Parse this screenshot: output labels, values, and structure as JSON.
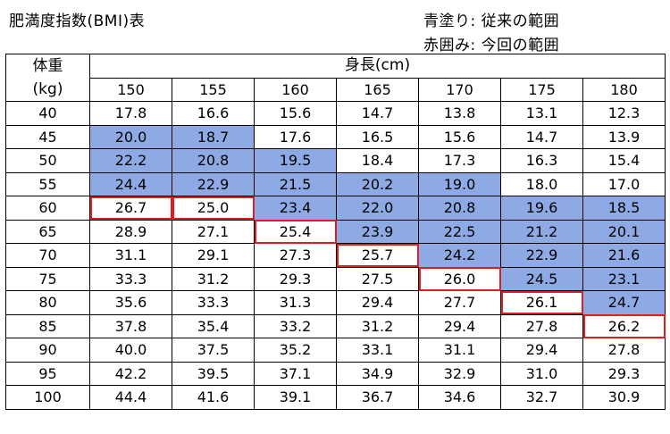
{
  "title": "肥満度指数(BMI)表",
  "legend": {
    "blue": "青塗り: 従来の範囲",
    "red": "赤囲み: 今回の範囲"
  },
  "colors": {
    "blue_fill": "#8eaae4",
    "red_outline": "#e11d1d"
  },
  "header": {
    "weight_label_line1": "体重",
    "weight_label_line2": "(kg)",
    "height_label": "身長(cm)",
    "heights": [
      "150",
      "155",
      "160",
      "165",
      "170",
      "175",
      "180"
    ]
  },
  "rows": [
    {
      "w": "40",
      "v": [
        "17.8",
        "16.6",
        "15.6",
        "14.7",
        "13.8",
        "13.1",
        "12.3"
      ]
    },
    {
      "w": "45",
      "v": [
        "20.0",
        "18.7",
        "17.6",
        "16.5",
        "15.6",
        "14.7",
        "13.9"
      ]
    },
    {
      "w": "50",
      "v": [
        "22.2",
        "20.8",
        "19.5",
        "18.4",
        "17.3",
        "16.3",
        "15.4"
      ]
    },
    {
      "w": "55",
      "v": [
        "24.4",
        "22.9",
        "21.5",
        "20.2",
        "19.0",
        "18.0",
        "17.0"
      ]
    },
    {
      "w": "60",
      "v": [
        "26.7",
        "25.0",
        "23.4",
        "22.0",
        "20.8",
        "19.6",
        "18.5"
      ]
    },
    {
      "w": "65",
      "v": [
        "28.9",
        "27.1",
        "25.4",
        "23.9",
        "22.5",
        "21.2",
        "20.1"
      ]
    },
    {
      "w": "70",
      "v": [
        "31.1",
        "29.1",
        "27.3",
        "25.7",
        "24.2",
        "22.9",
        "21.6"
      ]
    },
    {
      "w": "75",
      "v": [
        "33.3",
        "31.2",
        "29.3",
        "27.5",
        "26.0",
        "24.5",
        "23.1"
      ]
    },
    {
      "w": "80",
      "v": [
        "35.6",
        "33.3",
        "31.3",
        "29.4",
        "27.7",
        "26.1",
        "24.7"
      ]
    },
    {
      "w": "85",
      "v": [
        "37.8",
        "35.4",
        "33.2",
        "31.2",
        "29.4",
        "27.8",
        "26.2"
      ]
    },
    {
      "w": "90",
      "v": [
        "40.0",
        "37.5",
        "35.2",
        "33.1",
        "31.1",
        "29.4",
        "27.8"
      ]
    },
    {
      "w": "95",
      "v": [
        "42.2",
        "39.5",
        "37.1",
        "34.9",
        "32.9",
        "31.0",
        "29.3"
      ]
    },
    {
      "w": "100",
      "v": [
        "44.4",
        "41.6",
        "39.1",
        "36.7",
        "34.6",
        "32.7",
        "30.9"
      ]
    }
  ],
  "blue_cells": [
    [
      1,
      0
    ],
    [
      1,
      1
    ],
    [
      2,
      0
    ],
    [
      2,
      1
    ],
    [
      2,
      2
    ],
    [
      3,
      0
    ],
    [
      3,
      1
    ],
    [
      3,
      2
    ],
    [
      3,
      3
    ],
    [
      3,
      4
    ],
    [
      4,
      2
    ],
    [
      4,
      3
    ],
    [
      4,
      4
    ],
    [
      4,
      5
    ],
    [
      4,
      6
    ],
    [
      5,
      3
    ],
    [
      5,
      4
    ],
    [
      5,
      5
    ],
    [
      5,
      6
    ],
    [
      6,
      4
    ],
    [
      6,
      5
    ],
    [
      6,
      6
    ],
    [
      7,
      5
    ],
    [
      7,
      6
    ],
    [
      8,
      6
    ]
  ],
  "red_cells": [
    [
      4,
      0
    ],
    [
      4,
      1
    ],
    [
      5,
      2
    ],
    [
      6,
      3
    ],
    [
      7,
      4
    ],
    [
      8,
      5
    ],
    [
      9,
      6
    ]
  ]
}
